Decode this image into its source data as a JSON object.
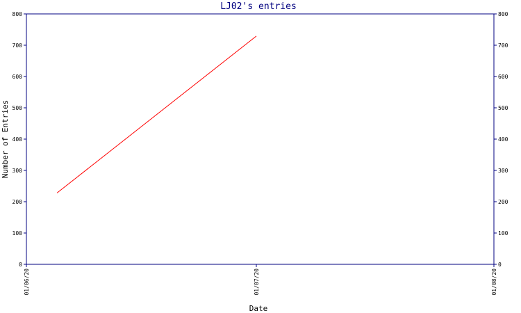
{
  "colors": {
    "axis": "#000080",
    "title": "#000080",
    "series": "#ff0000",
    "background": "#ffffff"
  },
  "chart_data": {
    "type": "line",
    "title": "LJ02's entries",
    "xlabel": "Date",
    "ylabel": "Number of Entries",
    "x_ticks": [
      "01/06/20",
      "01/07/20",
      "01/08/20"
    ],
    "y_ticks": [
      0,
      100,
      200,
      300,
      400,
      500,
      600,
      700,
      800
    ],
    "ylim": [
      0,
      800
    ],
    "x_range": [
      "01/06/20",
      "01/08/20"
    ],
    "grid": false,
    "legend": "none",
    "series": [
      {
        "x": [
          "2020-06-05",
          "2020-07-01"
        ],
        "y": [
          228,
          729
        ]
      }
    ]
  }
}
